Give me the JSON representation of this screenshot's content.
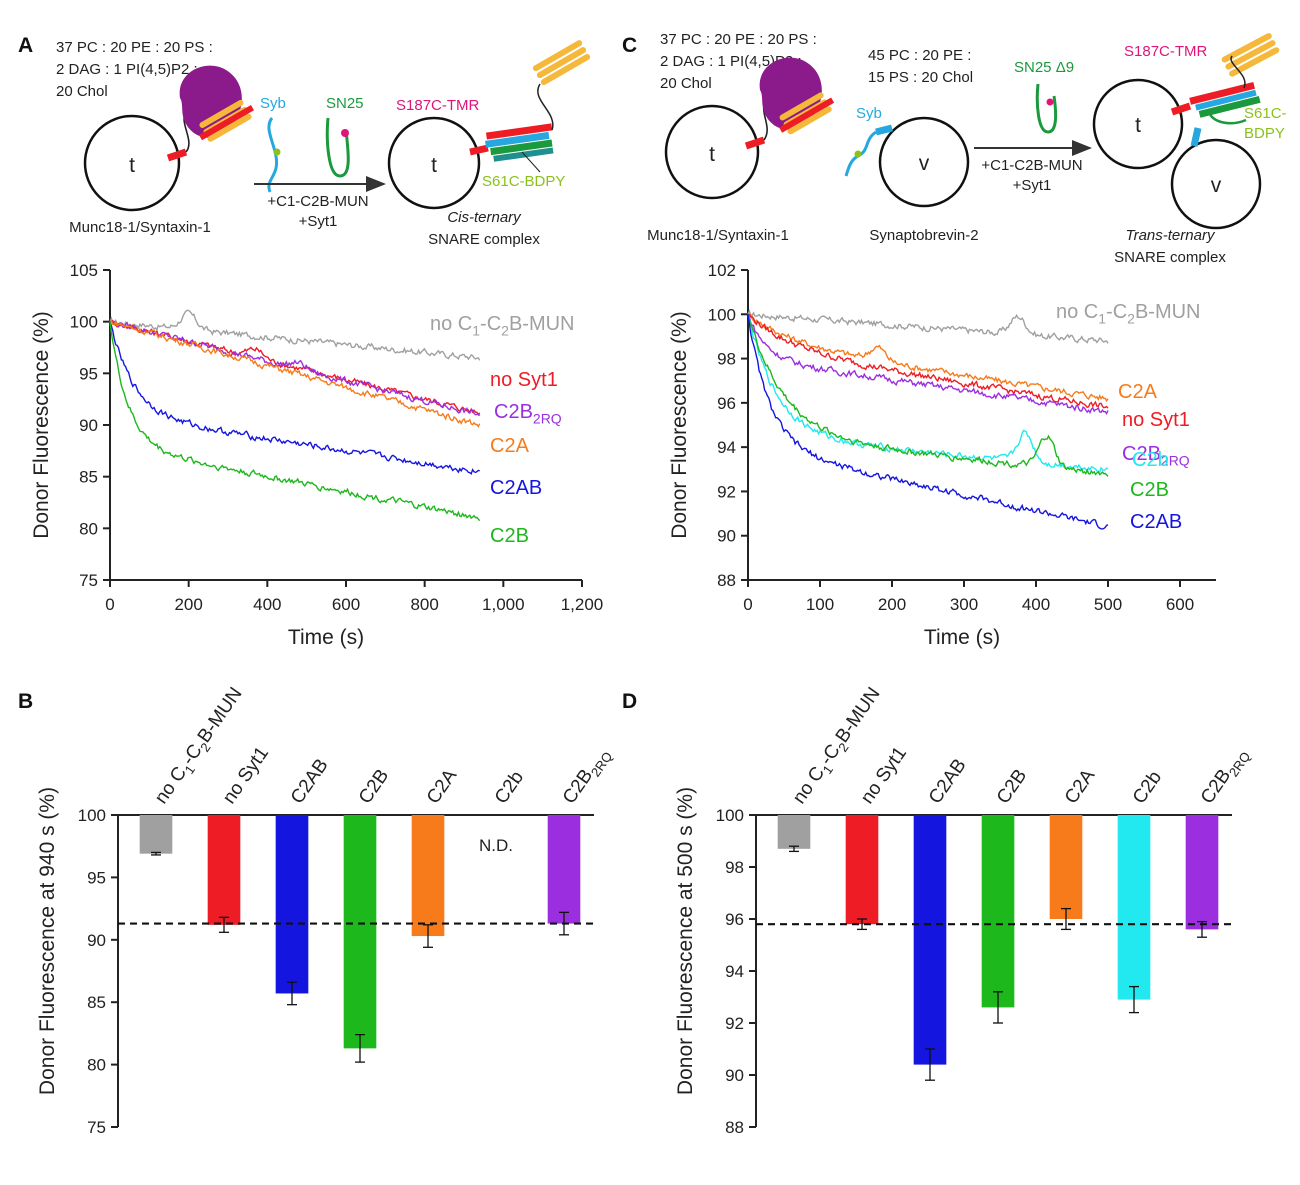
{
  "panels": {
    "A": {
      "letter": "A",
      "lipid": [
        "37 PC : 20 PE : 20 PS :",
        "2 DAG : 1 PI(4,5)P2 :",
        "20 Chol"
      ],
      "t_label": "t",
      "syb": "Syb",
      "sn25": "SN25",
      "arrow_line1": "+C1-C2B-MUN",
      "arrow_line2": "+Syt1",
      "s187": "S187C-TMR",
      "s61": "S61C-BDPY",
      "munc": "Munc18-1/Syntaxin-1",
      "complex1": "Cis-ternary",
      "complex2": "SNARE complex"
    },
    "C": {
      "letter": "C",
      "lipid_t": [
        "37 PC : 20 PE : 20 PS :",
        "2 DAG : 1 PI(4,5)P2 :",
        "20 Chol"
      ],
      "lipid_v": [
        "45 PC : 20 PE :",
        "15 PS : 20 Chol"
      ],
      "t_label": "t",
      "v_label": "v",
      "syb": "Syb",
      "sn25": "SN25 Δ9",
      "arrow_line1": "+C1-C2B-MUN",
      "arrow_line2": "+Syt1",
      "s187": "S187C-TMR",
      "s61": "S61C-",
      "s61b": "BDPY",
      "munc": "Munc18-1/Syntaxin-1",
      "syb2": "Synaptobrevin-2",
      "complex1": "Trans-ternary",
      "complex2": "SNARE complex"
    },
    "B": {
      "letter": "B",
      "nd": "N.D."
    },
    "D": {
      "letter": "D"
    }
  },
  "colors": {
    "gray": "#a0a0a0",
    "red": "#ee1c25",
    "blue": "#1515e0",
    "green": "#1cb81c",
    "orange": "#f77b1b",
    "cyan": "#22e8f0",
    "purple": "#9b2fe0",
    "munc": "#8b1a8b",
    "snareYellow": "#f5b83a",
    "syb": "#26a7e0",
    "sn25": "#1a9a3c",
    "s187": "#e0157a",
    "s61": "#8ac21a",
    "teal": "#1f8f8f"
  },
  "chart_data": [
    {
      "id": "A",
      "type": "line",
      "xlabel": "Time (s)",
      "ylabel": "Donor Fluorescence (%)",
      "xlim": [
        0,
        1200
      ],
      "ylim": [
        75,
        105
      ],
      "xticks": [
        0,
        200,
        400,
        600,
        800,
        "1,000",
        "1,200"
      ],
      "yticks": [
        75,
        80,
        85,
        90,
        95,
        100,
        105
      ],
      "series": [
        {
          "name": "no C1-C2B-MUN",
          "color": "gray",
          "end": 96.5,
          "fast": 0,
          "tau": 60,
          "bump": [
            200,
            1.5
          ]
        },
        {
          "name": "no Syt1",
          "color": "red",
          "end": 91.2,
          "fast": 0,
          "tau": 60,
          "bump": [
            370,
            0.8
          ]
        },
        {
          "name": "C2B2RQ",
          "color": "purple",
          "end": 91.0,
          "fast": 0,
          "tau": 60,
          "bump": [
            480,
            0.6
          ]
        },
        {
          "name": "C2A",
          "color": "orange",
          "end": 90.0,
          "fast": 0,
          "tau": 60,
          "bump": [
            0,
            0
          ]
        },
        {
          "name": "C2AB",
          "color": "blue",
          "end": 85.5,
          "fast": 9,
          "tau": 60,
          "bump": [
            0,
            0
          ]
        },
        {
          "name": "C2B",
          "color": "green",
          "end": 81.0,
          "fast": 12,
          "tau": 45,
          "bump": [
            0,
            0
          ]
        }
      ],
      "xmax": 940
    },
    {
      "id": "C",
      "type": "line",
      "xlabel": "Time (s)",
      "ylabel": "Donor Fluorescence (%)",
      "xlim": [
        0,
        650
      ],
      "ylim": [
        88,
        102
      ],
      "xticks": [
        0,
        100,
        200,
        300,
        400,
        500,
        600
      ],
      "yticks": [
        88,
        90,
        92,
        94,
        96,
        98,
        100,
        102
      ],
      "series": [
        {
          "name": "no C1-C2B-MUN",
          "color": "gray",
          "end": 98.8,
          "fast": 0,
          "tau": 40,
          "bump": [
            375,
            0.8
          ]
        },
        {
          "name": "C2A",
          "color": "orange",
          "end": 96.2,
          "fast": 1.2,
          "tau": 60,
          "bump": [
            180,
            0.6
          ]
        },
        {
          "name": "no Syt1",
          "color": "red",
          "end": 95.8,
          "fast": 1.5,
          "tau": 60,
          "bump": [
            0,
            0
          ]
        },
        {
          "name": "C2B2RQ",
          "color": "purple",
          "end": 95.6,
          "fast": 2.0,
          "tau": 25,
          "bump": [
            0,
            0
          ]
        },
        {
          "name": "C2b",
          "color": "cyan",
          "end": 93.0,
          "fast": 5.5,
          "tau": 40,
          "bump": [
            385,
            1.3
          ]
        },
        {
          "name": "C2B",
          "color": "green",
          "end": 92.8,
          "fast": 5.5,
          "tau": 50,
          "bump": [
            415,
            1.4
          ]
        },
        {
          "name": "C2AB",
          "color": "blue",
          "end": 90.4,
          "fast": 6.0,
          "tau": 30,
          "bump": [
            0,
            0
          ]
        }
      ],
      "xmax": 500
    },
    {
      "id": "B",
      "type": "bar",
      "ylabel": "Donor Fluorescence at 940 s (%)",
      "ylim": [
        75,
        100
      ],
      "yticks": [
        75,
        80,
        85,
        90,
        95,
        100
      ],
      "categories": [
        "no C1-C2B-MUN",
        "no Syt1",
        "C2AB",
        "C2B",
        "C2A",
        "C2b",
        "C2B2RQ"
      ],
      "values": [
        96.9,
        91.2,
        85.7,
        81.3,
        90.3,
        null,
        91.3
      ],
      "errors": [
        0.1,
        0.6,
        0.9,
        1.1,
        0.9,
        null,
        0.9
      ],
      "colors": [
        "gray",
        "red",
        "blue",
        "green",
        "orange",
        null,
        "purple"
      ],
      "reference": 91.3
    },
    {
      "id": "D",
      "type": "bar",
      "ylabel": "Donor Fluorescence at 500 s (%)",
      "ylim": [
        88,
        100
      ],
      "yticks": [
        88,
        90,
        92,
        94,
        96,
        98,
        100
      ],
      "categories": [
        "no C1-C2B-MUN",
        "no Syt1",
        "C2AB",
        "C2B",
        "C2A",
        "C2b",
        "C2B2RQ"
      ],
      "values": [
        98.7,
        95.8,
        90.4,
        92.6,
        96.0,
        92.9,
        95.6
      ],
      "errors": [
        0.1,
        0.2,
        0.6,
        0.6,
        0.4,
        0.5,
        0.3
      ],
      "colors": [
        "gray",
        "red",
        "blue",
        "green",
        "orange",
        "cyan",
        "purple"
      ],
      "reference": 95.8
    }
  ]
}
